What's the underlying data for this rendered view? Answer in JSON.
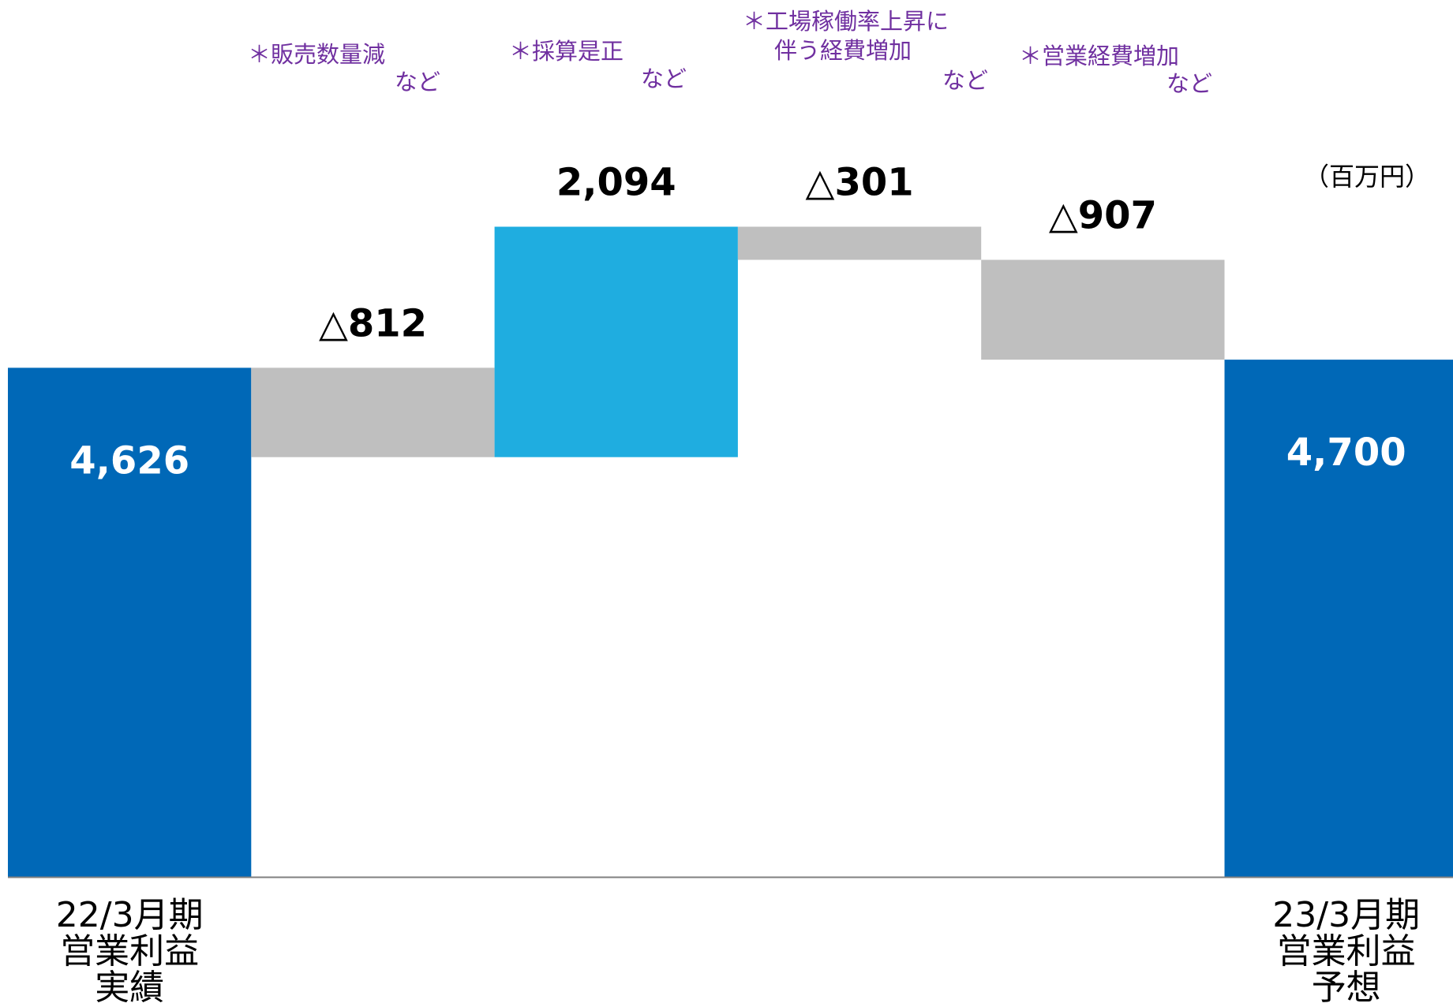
{
  "unit_label": "（百万円）",
  "colors": {
    "total_bar": "#0068b7",
    "increase_bar": "#1fade0",
    "decrease_bar": "#bfbfbf",
    "note_text": "#7030a0",
    "baseline": "#808080"
  },
  "chart_data": {
    "type": "bar",
    "subtype": "waterfall",
    "title": "",
    "xlabel": "",
    "ylabel": "",
    "unit": "（百万円）",
    "ylim": [
      0,
      5900
    ],
    "grid": false,
    "legend": "none",
    "bars": [
      {
        "kind": "total",
        "start": 0,
        "end": 4626,
        "label": "4,626",
        "category": [
          "22/3月期",
          "営業利益",
          "実績"
        ],
        "note": null
      },
      {
        "kind": "decrease",
        "start": 4626,
        "end": 3814,
        "label": "△812",
        "category": null,
        "note": {
          "lines": [
            "＊販売数量減"
          ],
          "suffix": "など"
        }
      },
      {
        "kind": "increase",
        "start": 3814,
        "end": 5908,
        "label": "2,094",
        "category": null,
        "note": {
          "lines": [
            "＊採算是正"
          ],
          "suffix": "など"
        }
      },
      {
        "kind": "decrease",
        "start": 5908,
        "end": 5607,
        "label": "△301",
        "category": null,
        "note": {
          "lines": [
            "＊工場稼働率上昇に",
            "伴う経費増加"
          ],
          "suffix": "など"
        }
      },
      {
        "kind": "decrease",
        "start": 5607,
        "end": 4700,
        "label": "△907",
        "category": null,
        "note": {
          "lines": [
            "＊営業経費増加"
          ],
          "suffix": "など"
        }
      },
      {
        "kind": "total",
        "start": 0,
        "end": 4700,
        "label": "4,700",
        "category": [
          "23/3月期",
          "営業利益",
          "予想"
        ],
        "note": null
      }
    ]
  }
}
